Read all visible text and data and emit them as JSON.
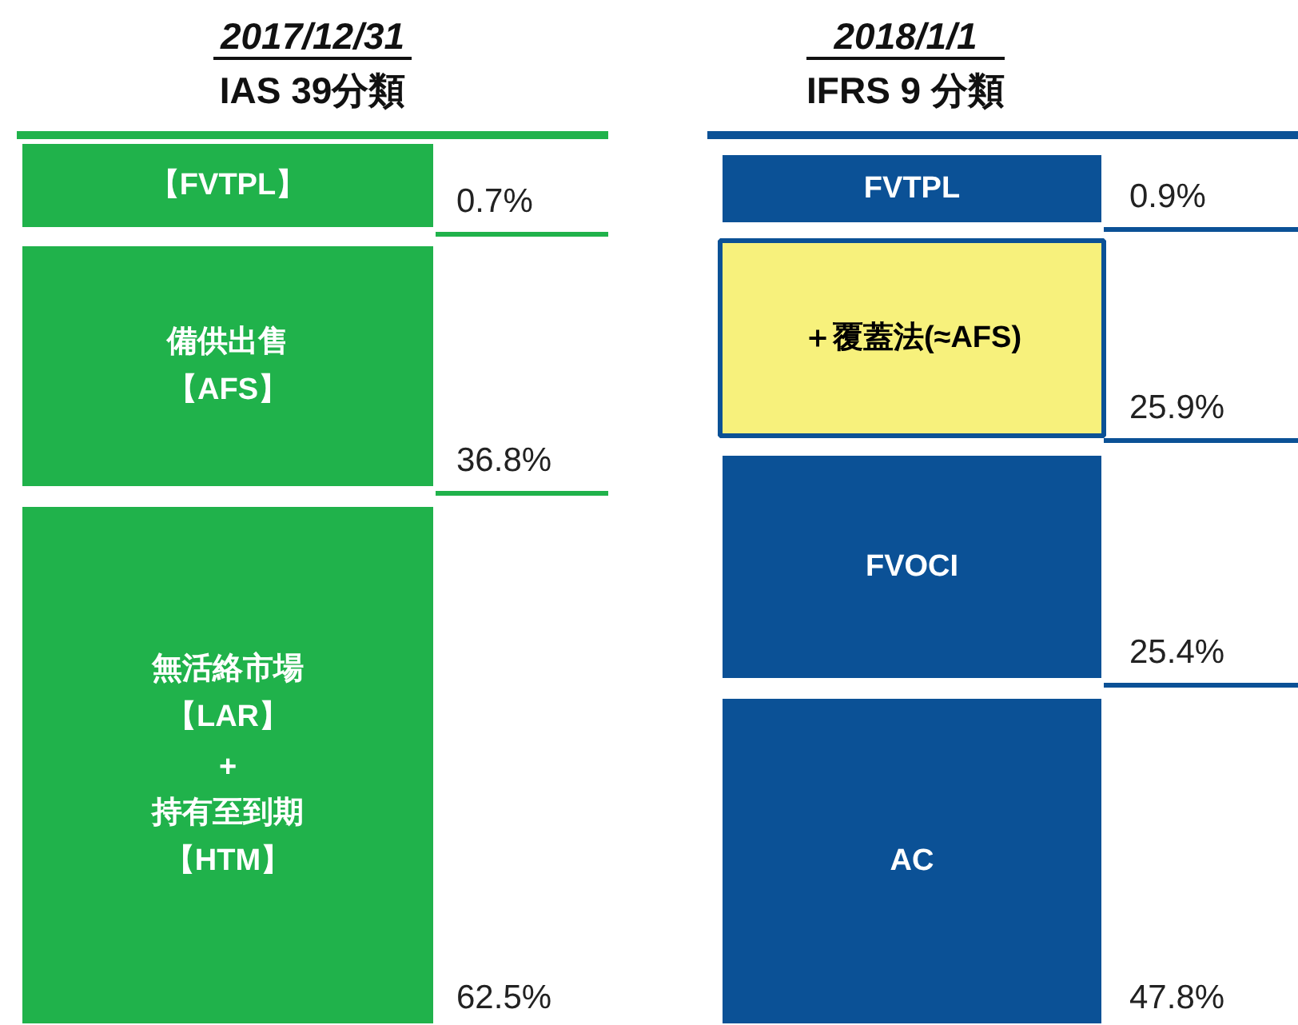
{
  "chart_data": [
    {
      "type": "other",
      "title": "2017/12/31",
      "subtitle": "IAS 39分類",
      "categories": [
        "【FVTPL】",
        "備供出售【AFS】",
        "無活絡市場【LAR】+持有至到期【HTM】"
      ],
      "values": [
        0.7,
        36.8,
        62.5
      ],
      "value_labels": [
        "0.7%",
        "36.8%",
        "62.5%"
      ],
      "colors": [
        "#20b24b",
        "#20b24b",
        "#20b24b"
      ]
    },
    {
      "type": "other",
      "title": "2018/1/1",
      "subtitle": "IFRS 9 分類",
      "categories": [
        "FVTPL",
        "＋覆蓋法(≈AFS)",
        "FVOCI",
        "AC"
      ],
      "values": [
        0.9,
        25.9,
        25.4,
        47.8
      ],
      "value_labels": [
        "0.9%",
        "25.9%",
        "25.4%",
        "47.8%"
      ],
      "colors": [
        "#0b5196",
        "#f7f17c",
        "#0b5196",
        "#0b5196"
      ]
    }
  ]
}
